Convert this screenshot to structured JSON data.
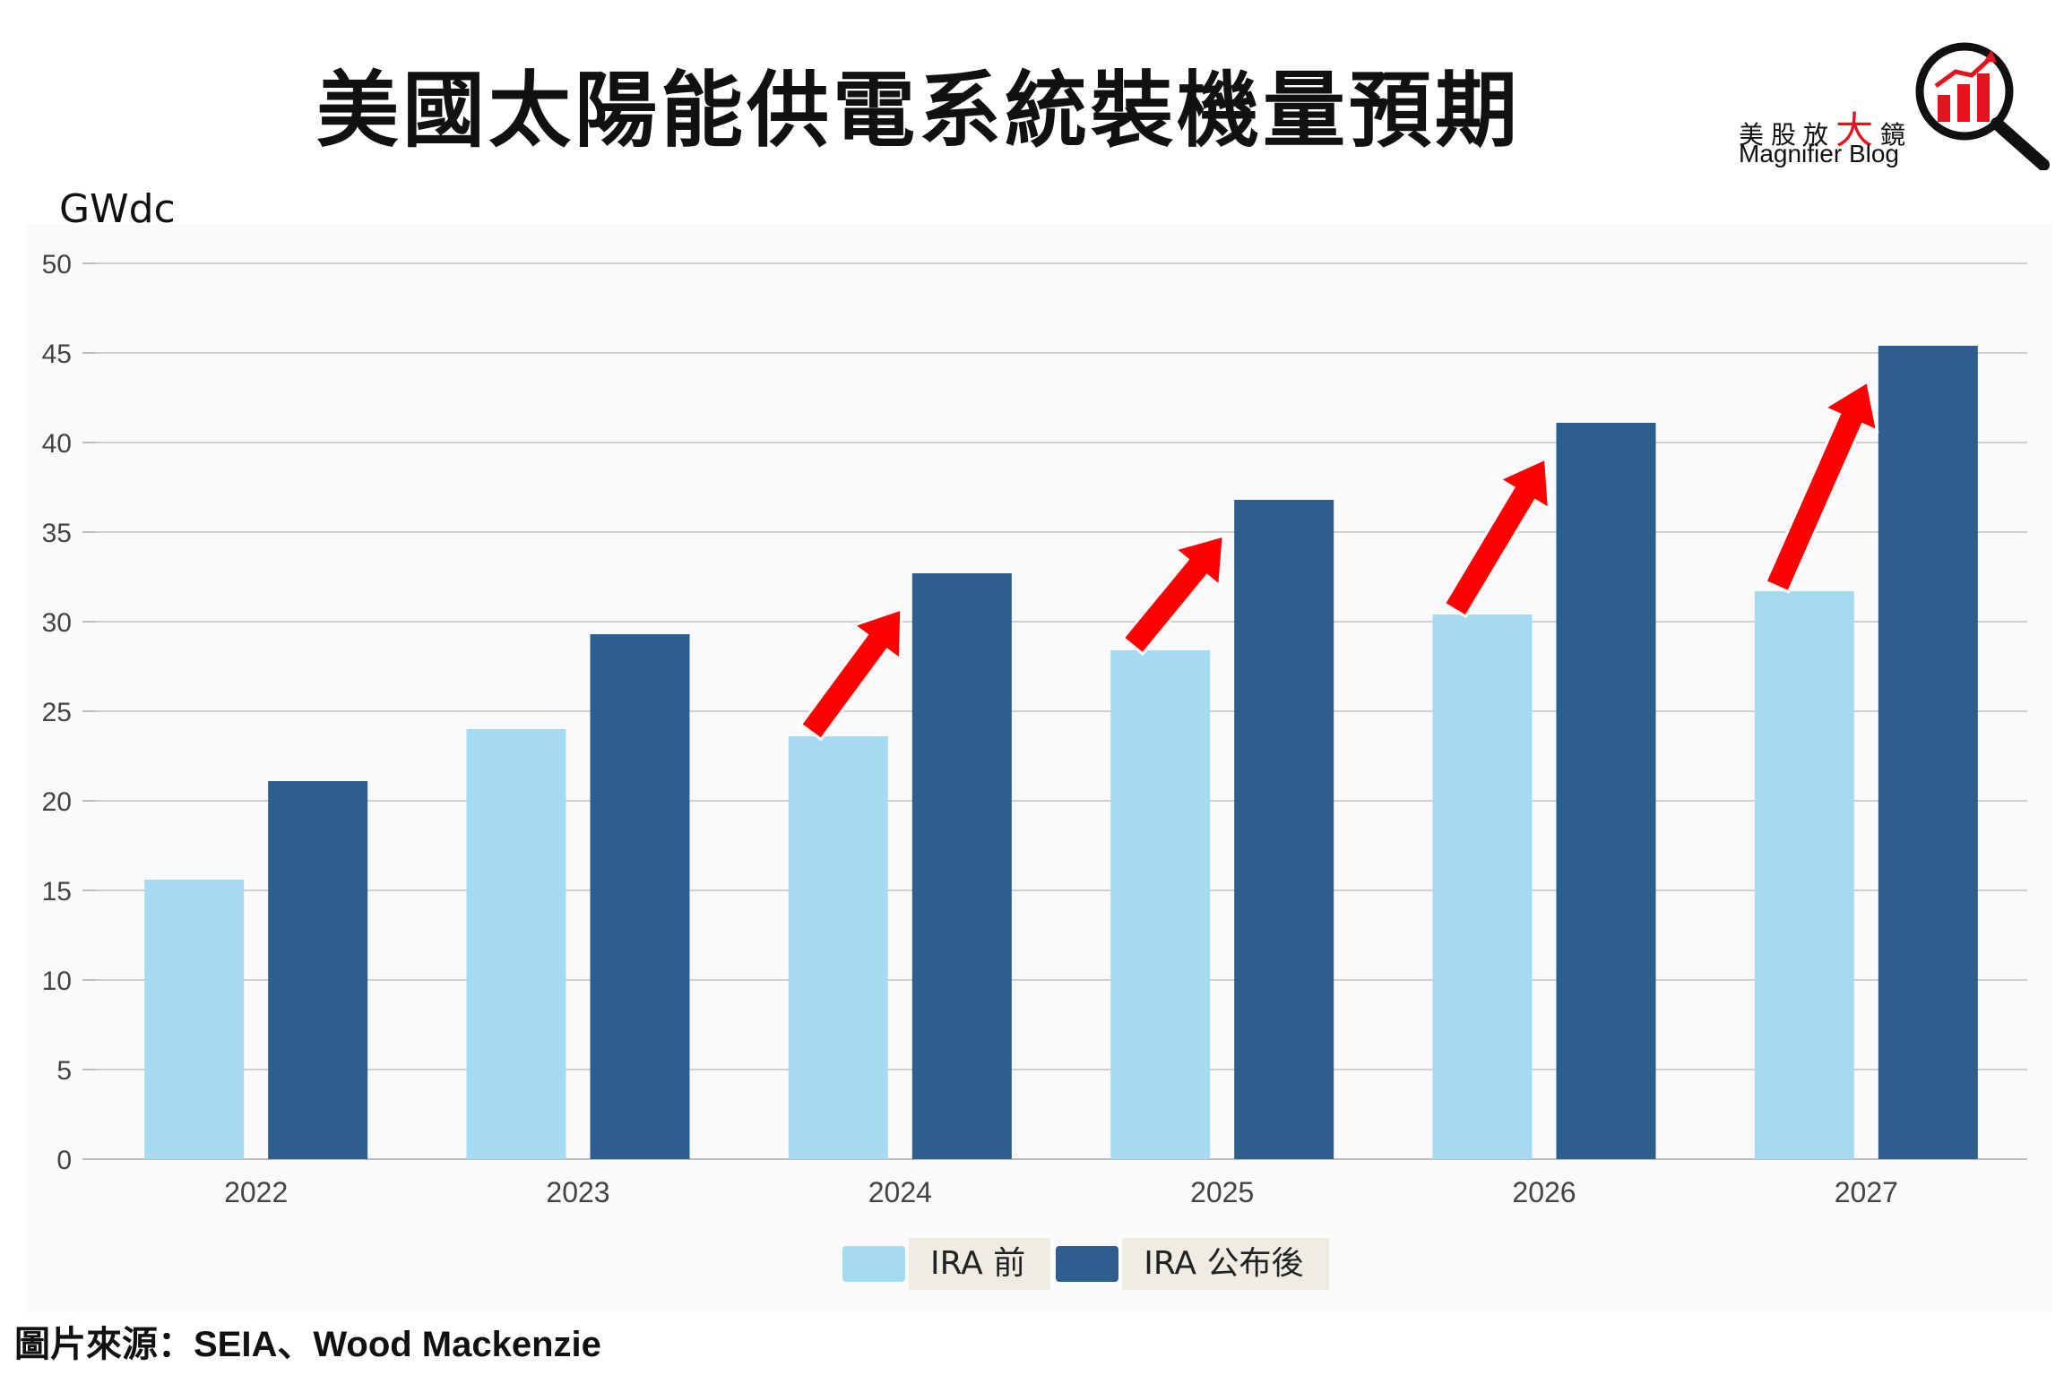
{
  "title": "美國太陽能供電系統裝機量預期",
  "source": "圖片來源：SEIA、Wood Mackenzie",
  "logo": {
    "name_cn_1": "美股放",
    "name_cn_2": "大",
    "name_cn_3": "鏡",
    "name_en": "Magnifier Blog"
  },
  "colors": {
    "pre_ira": "#a6daf1",
    "post_ira": "#2d5e8e",
    "arrow": "#ff0000",
    "grid": "#cfcfcf"
  },
  "chart_data": {
    "type": "bar",
    "title": "美國太陽能供電系統裝機量預期",
    "ylabel": "GWdc",
    "xlabel": "",
    "ylim": [
      0,
      50
    ],
    "yticks": [
      0,
      5,
      10,
      15,
      20,
      25,
      30,
      35,
      40,
      45,
      50
    ],
    "grid": true,
    "legend_position": "bottom-center",
    "categories": [
      "2022",
      "2023",
      "2024",
      "2025",
      "2026",
      "2027"
    ],
    "series": [
      {
        "name": "IRA 前",
        "color": "#a6daf1",
        "values": [
          15.6,
          24.0,
          23.6,
          28.4,
          30.4,
          31.7
        ]
      },
      {
        "name": "IRA 公布後",
        "color": "#2d5e8e",
        "values": [
          21.1,
          29.3,
          32.7,
          36.8,
          41.1,
          45.4
        ]
      }
    ],
    "annotations": [
      {
        "type": "arrow",
        "category": "2024"
      },
      {
        "type": "arrow",
        "category": "2025"
      },
      {
        "type": "arrow",
        "category": "2026"
      },
      {
        "type": "arrow",
        "category": "2027"
      }
    ]
  }
}
